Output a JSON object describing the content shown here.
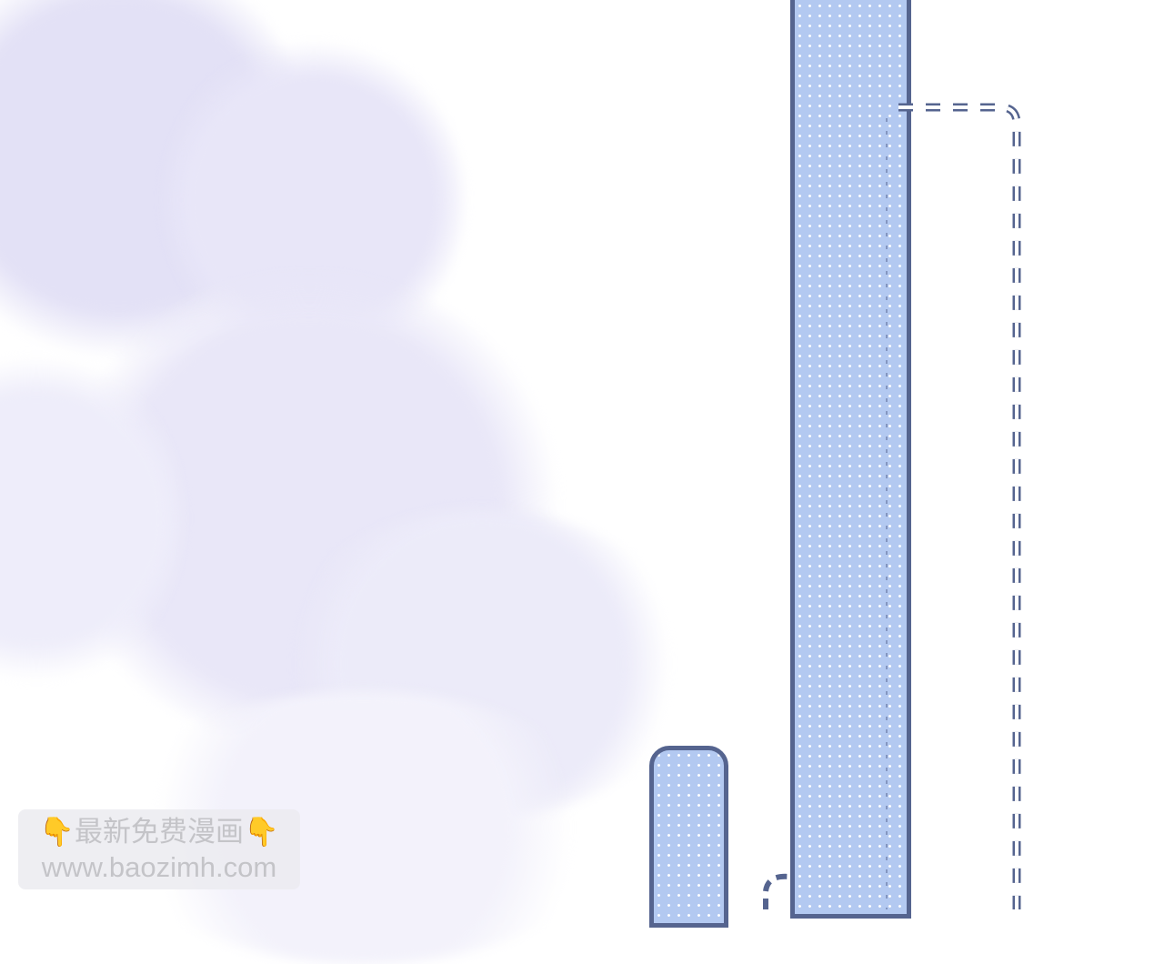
{
  "watermark": {
    "line1": "👇最新免费漫画👇",
    "line2": "www.baozimh.com"
  },
  "colors": {
    "bar_fill": "#b3c9f1",
    "bar_outline": "#55648f",
    "mist": "#e4e2f7"
  }
}
